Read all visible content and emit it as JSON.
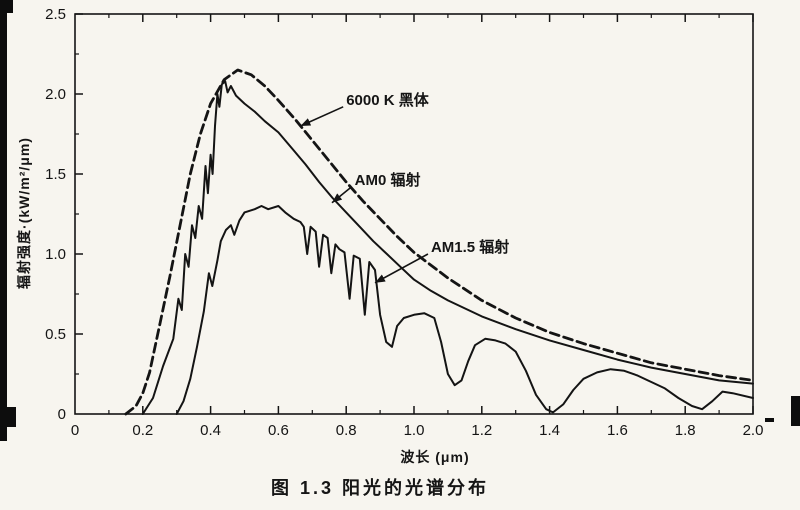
{
  "chart_data": {
    "type": "line",
    "title": "图 1.3  阳光的光谱分布",
    "xlabel": "波长 (μm)",
    "ylabel": "辐射强度·(kW/m²/μm)",
    "xlim": [
      0,
      2.0
    ],
    "ylim": [
      0,
      2.5
    ],
    "grid": false,
    "legend_position": "inline-annotations",
    "line_color": "#141414",
    "origin_label": "0",
    "x_ticks": {
      "values": [
        0.2,
        0.4,
        0.6,
        0.8,
        1.0,
        1.2,
        1.4,
        1.6,
        1.8,
        2.0
      ],
      "labels": [
        "0.2",
        "0.4",
        "0.6",
        "0.8",
        "1.0",
        "1.2",
        "1.4",
        "1.6",
        "1.8",
        "2.0"
      ],
      "minor_step": 0.1
    },
    "y_ticks": {
      "values": [
        0,
        0.5,
        1.0,
        1.5,
        2.0,
        2.5
      ],
      "labels": [
        "0",
        "0.5",
        "1.0",
        "1.5",
        "2.0",
        "2.5"
      ],
      "minor_step": 0.25
    },
    "series": [
      {
        "id": "blackbody-6000k",
        "name": "6000 K 黑体",
        "line_style": "dashed",
        "points": [
          [
            0.15,
            0.0
          ],
          [
            0.18,
            0.05
          ],
          [
            0.2,
            0.13
          ],
          [
            0.22,
            0.26
          ],
          [
            0.25,
            0.56
          ],
          [
            0.28,
            0.86
          ],
          [
            0.31,
            1.18
          ],
          [
            0.34,
            1.5
          ],
          [
            0.37,
            1.75
          ],
          [
            0.4,
            1.94
          ],
          [
            0.44,
            2.09
          ],
          [
            0.48,
            2.15
          ],
          [
            0.52,
            2.12
          ],
          [
            0.56,
            2.05
          ],
          [
            0.6,
            1.96
          ],
          [
            0.65,
            1.84
          ],
          [
            0.7,
            1.71
          ],
          [
            0.75,
            1.58
          ],
          [
            0.8,
            1.45
          ],
          [
            0.85,
            1.33
          ],
          [
            0.9,
            1.22
          ],
          [
            0.95,
            1.11
          ],
          [
            1.0,
            1.01
          ],
          [
            1.1,
            0.85
          ],
          [
            1.2,
            0.71
          ],
          [
            1.3,
            0.6
          ],
          [
            1.4,
            0.51
          ],
          [
            1.5,
            0.44
          ],
          [
            1.6,
            0.38
          ],
          [
            1.7,
            0.32
          ],
          [
            1.8,
            0.28
          ],
          [
            1.9,
            0.24
          ],
          [
            2.0,
            0.21
          ]
        ]
      },
      {
        "id": "am0",
        "name": "AM0 辐射",
        "line_style": "solid",
        "points": [
          [
            0.2,
            0.0
          ],
          [
            0.23,
            0.1
          ],
          [
            0.26,
            0.3
          ],
          [
            0.29,
            0.47
          ],
          [
            0.305,
            0.72
          ],
          [
            0.315,
            0.65
          ],
          [
            0.325,
            1.0
          ],
          [
            0.335,
            0.92
          ],
          [
            0.345,
            1.18
          ],
          [
            0.355,
            1.1
          ],
          [
            0.365,
            1.3
          ],
          [
            0.375,
            1.22
          ],
          [
            0.385,
            1.55
          ],
          [
            0.392,
            1.38
          ],
          [
            0.4,
            1.62
          ],
          [
            0.406,
            1.5
          ],
          [
            0.413,
            1.8
          ],
          [
            0.42,
            2.0
          ],
          [
            0.426,
            1.92
          ],
          [
            0.433,
            2.06
          ],
          [
            0.443,
            2.08
          ],
          [
            0.45,
            2.01
          ],
          [
            0.46,
            2.05
          ],
          [
            0.475,
            1.99
          ],
          [
            0.5,
            1.94
          ],
          [
            0.53,
            1.89
          ],
          [
            0.56,
            1.83
          ],
          [
            0.6,
            1.76
          ],
          [
            0.64,
            1.66
          ],
          [
            0.68,
            1.56
          ],
          [
            0.72,
            1.45
          ],
          [
            0.76,
            1.35
          ],
          [
            0.8,
            1.26
          ],
          [
            0.84,
            1.17
          ],
          [
            0.88,
            1.08
          ],
          [
            0.92,
            1.0
          ],
          [
            0.96,
            0.92
          ],
          [
            1.0,
            0.84
          ],
          [
            1.05,
            0.77
          ],
          [
            1.1,
            0.71
          ],
          [
            1.2,
            0.61
          ],
          [
            1.3,
            0.53
          ],
          [
            1.4,
            0.46
          ],
          [
            1.5,
            0.4
          ],
          [
            1.6,
            0.34
          ],
          [
            1.7,
            0.29
          ],
          [
            1.8,
            0.25
          ],
          [
            1.9,
            0.21
          ],
          [
            2.0,
            0.19
          ]
        ]
      },
      {
        "id": "am15",
        "name": "AM1.5 辐射",
        "line_style": "solid",
        "points": [
          [
            0.3,
            0.0
          ],
          [
            0.32,
            0.08
          ],
          [
            0.34,
            0.22
          ],
          [
            0.36,
            0.42
          ],
          [
            0.38,
            0.64
          ],
          [
            0.395,
            0.88
          ],
          [
            0.405,
            0.8
          ],
          [
            0.42,
            0.96
          ],
          [
            0.43,
            1.08
          ],
          [
            0.445,
            1.15
          ],
          [
            0.46,
            1.18
          ],
          [
            0.47,
            1.12
          ],
          [
            0.485,
            1.21
          ],
          [
            0.5,
            1.26
          ],
          [
            0.53,
            1.28
          ],
          [
            0.55,
            1.3
          ],
          [
            0.57,
            1.28
          ],
          [
            0.6,
            1.3
          ],
          [
            0.62,
            1.26
          ],
          [
            0.645,
            1.22
          ],
          [
            0.665,
            1.2
          ],
          [
            0.675,
            1.17
          ],
          [
            0.685,
            1.0
          ],
          [
            0.695,
            1.17
          ],
          [
            0.71,
            1.14
          ],
          [
            0.72,
            0.92
          ],
          [
            0.732,
            1.12
          ],
          [
            0.745,
            1.1
          ],
          [
            0.756,
            0.88
          ],
          [
            0.768,
            1.06
          ],
          [
            0.78,
            1.03
          ],
          [
            0.795,
            1.01
          ],
          [
            0.81,
            0.72
          ],
          [
            0.822,
            0.99
          ],
          [
            0.84,
            0.97
          ],
          [
            0.855,
            0.62
          ],
          [
            0.868,
            0.95
          ],
          [
            0.885,
            0.9
          ],
          [
            0.9,
            0.62
          ],
          [
            0.918,
            0.45
          ],
          [
            0.935,
            0.42
          ],
          [
            0.95,
            0.55
          ],
          [
            0.97,
            0.6
          ],
          [
            1.0,
            0.62
          ],
          [
            1.03,
            0.63
          ],
          [
            1.06,
            0.6
          ],
          [
            1.08,
            0.45
          ],
          [
            1.1,
            0.25
          ],
          [
            1.12,
            0.18
          ],
          [
            1.14,
            0.21
          ],
          [
            1.16,
            0.33
          ],
          [
            1.18,
            0.43
          ],
          [
            1.21,
            0.47
          ],
          [
            1.24,
            0.46
          ],
          [
            1.27,
            0.44
          ],
          [
            1.3,
            0.39
          ],
          [
            1.33,
            0.27
          ],
          [
            1.36,
            0.12
          ],
          [
            1.39,
            0.03
          ],
          [
            1.41,
            0.01
          ],
          [
            1.44,
            0.06
          ],
          [
            1.47,
            0.15
          ],
          [
            1.5,
            0.22
          ],
          [
            1.54,
            0.26
          ],
          [
            1.58,
            0.28
          ],
          [
            1.62,
            0.27
          ],
          [
            1.66,
            0.24
          ],
          [
            1.7,
            0.2
          ],
          [
            1.74,
            0.16
          ],
          [
            1.78,
            0.1
          ],
          [
            1.82,
            0.05
          ],
          [
            1.85,
            0.03
          ],
          [
            1.88,
            0.08
          ],
          [
            1.91,
            0.14
          ],
          [
            1.94,
            0.13
          ],
          [
            2.0,
            0.1
          ]
        ]
      }
    ],
    "annotations": [
      {
        "id": "blackbody",
        "text": "6000 K 黑体",
        "text_xy": [
          0.8,
          1.97
        ],
        "arrow_xy": [
          0.665,
          1.8
        ]
      },
      {
        "id": "am0",
        "text": "AM0 辐射",
        "text_xy": [
          0.825,
          1.47
        ],
        "arrow_xy": [
          0.758,
          1.32
        ]
      },
      {
        "id": "am15",
        "text": "AM1.5 辐射",
        "text_xy": [
          1.05,
          1.05
        ],
        "arrow_xy": [
          0.885,
          0.82
        ]
      }
    ]
  }
}
